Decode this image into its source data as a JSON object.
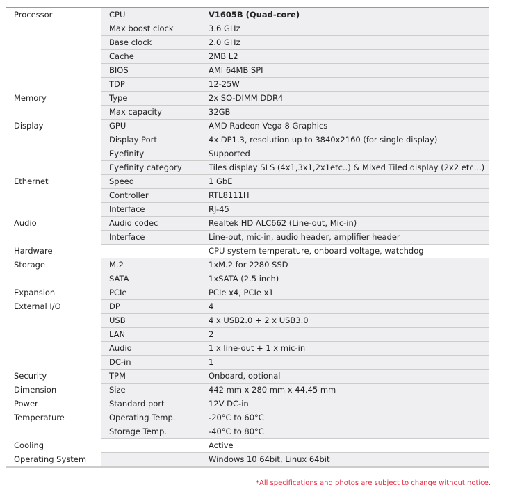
{
  "rows": [
    {
      "category": "Processor",
      "item": "CPU",
      "value": "V1605B (Quad-core)",
      "bold": true
    },
    {
      "category": "",
      "item": "Max boost clock",
      "value": "3.6 GHz"
    },
    {
      "category": "",
      "item": "Base clock",
      "value": "2.0 GHz"
    },
    {
      "category": "",
      "item": "Cache",
      "value": "2MB L2"
    },
    {
      "category": "",
      "item": "BIOS",
      "value": "AMI 64MB SPI"
    },
    {
      "category": "",
      "item": "TDP",
      "value": "12-25W"
    },
    {
      "category": "Memory",
      "item": "Type",
      "value": "2x SO-DIMM DDR4"
    },
    {
      "category": "",
      "item": "Max capacity",
      "value": "32GB"
    },
    {
      "category": "Display",
      "item": "GPU",
      "value": "AMD Radeon Vega 8 Graphics"
    },
    {
      "category": "",
      "item": "Display Port",
      "value": "4x DP1.3, resolution up to 3840x2160 (for single display)"
    },
    {
      "category": "",
      "item": "Eyefinity",
      "value": "Supported"
    },
    {
      "category": "",
      "item": "Eyefinity category",
      "value": "Tiles display SLS (4x1,3x1,2x1etc..) & Mixed Tiled display (2x2 etc...)"
    },
    {
      "category": "Ethernet",
      "item": "Speed",
      "value": "1 GbE"
    },
    {
      "category": "",
      "item": "Controller",
      "value": "RTL8111H"
    },
    {
      "category": "",
      "item": "Interface",
      "value": "RJ-45"
    },
    {
      "category": "Audio",
      "item": "Audio codec",
      "value": "Realtek HD ALC662 (Line-out, Mic-in)"
    },
    {
      "category": "",
      "item": "Interface",
      "value": "Line-out, mic-in, audio header, amplifier header"
    },
    {
      "category": "Hardware",
      "item": "",
      "value": "CPU system temperature, onboard voltage, watchdog",
      "plain": true
    },
    {
      "category": "Storage",
      "item": "M.2",
      "value": "1xM.2 for 2280 SSD"
    },
    {
      "category": "",
      "item": "SATA",
      "value": "1xSATA (2.5 inch)"
    },
    {
      "category": "Expansion",
      "item": "PCIe",
      "value": "PCIe x4, PCIe x1"
    },
    {
      "category": "External I/O",
      "item": "DP",
      "value": "4"
    },
    {
      "category": "",
      "item": "USB",
      "value": "4 x USB2.0 + 2 x USB3.0"
    },
    {
      "category": "",
      "item": "LAN",
      "value": "2"
    },
    {
      "category": "",
      "item": "Audio",
      "value": "1 x line-out + 1 x mic-in"
    },
    {
      "category": "",
      "item": "DC-in",
      "value": "1"
    },
    {
      "category": "Security",
      "item": "TPM",
      "value": "Onboard, optional"
    },
    {
      "category": "Dimension",
      "item": "Size",
      "value": "442 mm x 280 mm x 44.45 mm"
    },
    {
      "category": "Power",
      "item": "Standard port",
      "value": "12V DC-in"
    },
    {
      "category": "Temperature",
      "item": "Operating Temp.",
      "value": "-20°C to 60°C"
    },
    {
      "category": "",
      "item": "Storage Temp.",
      "value": "-40°C to 80°C"
    },
    {
      "category": "Cooling",
      "item": "",
      "value": "Active",
      "plain": true
    },
    {
      "category": "Operating System",
      "item": "",
      "value": "Windows 10 64bit, Linux 64bit"
    }
  ],
  "note": "*All specifications and photos are subject to change without notice.",
  "colors": {
    "row_bg": "#efeff1",
    "note": "#e8243c"
  }
}
